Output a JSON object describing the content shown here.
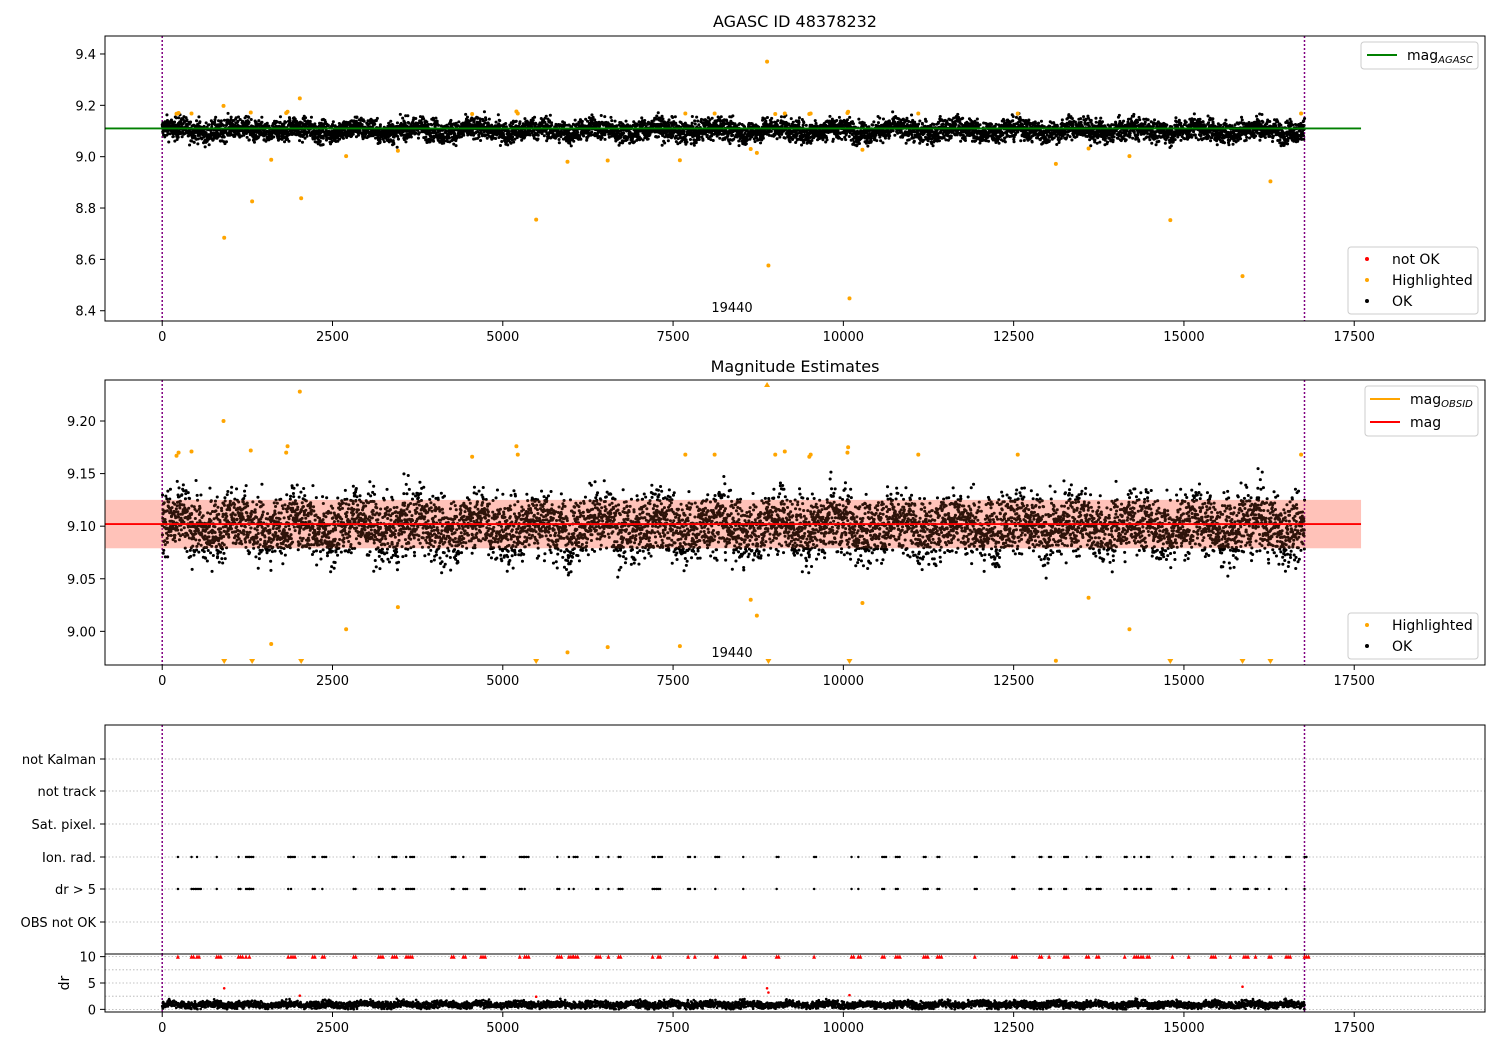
{
  "chart_data": [
    {
      "type": "scatter",
      "title": "AGASC ID 48378232",
      "xlim": [
        -840,
        19420
      ],
      "ylim": [
        8.36,
        9.47
      ],
      "xticks": [
        0,
        2500,
        5000,
        7500,
        10000,
        12500,
        15000,
        17500
      ],
      "yticks": [
        8.4,
        8.6,
        8.8,
        9.0,
        9.2,
        9.4
      ],
      "obsid_marker": {
        "x": 0,
        "label": "19440"
      },
      "vlines_x": [
        0,
        16770
      ],
      "mag_agasc_line": {
        "y": 9.11,
        "x_range": [
          -840,
          17600
        ]
      },
      "ok_series": {
        "name": "OK",
        "x_range": [
          0,
          16770
        ],
        "center": 9.103,
        "spread": 0.028
      },
      "highlighted": {
        "name": "Highlighted",
        "points": [
          [
            210,
            9.167
          ],
          [
            240,
            9.17
          ],
          [
            430,
            9.168
          ],
          [
            900,
            9.198
          ],
          [
            910,
            8.684
          ],
          [
            1300,
            9.172
          ],
          [
            1320,
            8.826
          ],
          [
            1600,
            8.988
          ],
          [
            1820,
            9.17
          ],
          [
            1840,
            9.175
          ],
          [
            2020,
            9.227
          ],
          [
            2040,
            8.838
          ],
          [
            2700,
            9.002
          ],
          [
            3460,
            9.023
          ],
          [
            4550,
            9.166
          ],
          [
            5200,
            9.176
          ],
          [
            5220,
            9.168
          ],
          [
            5490,
            8.755
          ],
          [
            5950,
            8.98
          ],
          [
            6540,
            8.985
          ],
          [
            7600,
            8.986
          ],
          [
            7680,
            9.168
          ],
          [
            8110,
            9.168
          ],
          [
            8640,
            9.03
          ],
          [
            8730,
            9.015
          ],
          [
            8880,
            9.37
          ],
          [
            8900,
            8.576
          ],
          [
            9000,
            9.166
          ],
          [
            9140,
            9.168
          ],
          [
            9500,
            9.166
          ],
          [
            9520,
            9.168
          ],
          [
            10060,
            9.17
          ],
          [
            10070,
            9.175
          ],
          [
            10090,
            8.448
          ],
          [
            10280,
            9.027
          ],
          [
            11100,
            9.168
          ],
          [
            12560,
            9.168
          ],
          [
            13120,
            8.972
          ],
          [
            13600,
            9.032
          ],
          [
            14200,
            9.002
          ],
          [
            14800,
            8.753
          ],
          [
            15860,
            8.535
          ],
          [
            16270,
            8.904
          ],
          [
            16720,
            9.168
          ]
        ]
      },
      "legend_lines": [
        {
          "name": "mag",
          "sub": "AGASC",
          "color": "#008000"
        }
      ],
      "legend_points": [
        {
          "name": "not OK",
          "color": "#ff0000"
        },
        {
          "name": "Highlighted",
          "color": "#ffa500"
        },
        {
          "name": "OK",
          "color": "#000000"
        }
      ]
    },
    {
      "type": "scatter",
      "title": "Magnitude Estimates",
      "xlim": [
        -840,
        19420
      ],
      "ylim": [
        8.968,
        9.239
      ],
      "xticks": [
        0,
        2500,
        5000,
        7500,
        10000,
        12500,
        15000,
        17500
      ],
      "yticks": [
        9.0,
        9.05,
        9.1,
        9.15,
        9.2
      ],
      "obsid_marker": {
        "x": 0,
        "label": "19440"
      },
      "vlines_x": [
        0,
        16770
      ],
      "mag_line": {
        "y": 9.102,
        "band": [
          9.079,
          9.125
        ],
        "x_range": [
          -840,
          17600
        ]
      },
      "ok_series": {
        "name": "OK",
        "x_range": [
          0,
          16770
        ],
        "center": 9.1,
        "spread": 0.02
      },
      "highlighted": {
        "name": "Highlighted",
        "points": [
          [
            210,
            9.167
          ],
          [
            240,
            9.17
          ],
          [
            430,
            9.171
          ],
          [
            900,
            9.2
          ],
          [
            1300,
            9.172
          ],
          [
            1600,
            8.988
          ],
          [
            1820,
            9.17
          ],
          [
            1840,
            9.176
          ],
          [
            2020,
            9.228
          ],
          [
            2700,
            9.002
          ],
          [
            3460,
            9.023
          ],
          [
            4550,
            9.166
          ],
          [
            5200,
            9.176
          ],
          [
            5220,
            9.168
          ],
          [
            5950,
            8.98
          ],
          [
            6540,
            8.985
          ],
          [
            7600,
            8.986
          ],
          [
            7680,
            9.168
          ],
          [
            8110,
            9.168
          ],
          [
            8640,
            9.03
          ],
          [
            8730,
            9.015
          ],
          [
            9000,
            9.168
          ],
          [
            9140,
            9.171
          ],
          [
            9500,
            9.166
          ],
          [
            9520,
            9.168
          ],
          [
            10060,
            9.17
          ],
          [
            10070,
            9.175
          ],
          [
            10280,
            9.027
          ],
          [
            11100,
            9.168
          ],
          [
            12560,
            9.168
          ],
          [
            13120,
            8.972
          ],
          [
            13600,
            9.032
          ],
          [
            14200,
            9.002
          ],
          [
            16720,
            9.168
          ]
        ]
      },
      "clipped_low_x": [
        910,
        1320,
        2040,
        5490,
        8900,
        10090,
        14800,
        15860,
        16270
      ],
      "clipped_high_x": [
        8880
      ],
      "legend_lines": [
        {
          "name": "mag",
          "sub": "OBSID",
          "color": "#ffa500"
        },
        {
          "name": "mag",
          "sub": "",
          "color": "#ff0000"
        }
      ],
      "legend_points": [
        {
          "name": "Highlighted",
          "color": "#ffa500"
        },
        {
          "name": "OK",
          "color": "#000000"
        }
      ]
    },
    {
      "type": "scatter",
      "title": "",
      "xlim": [
        -840,
        19420
      ],
      "categories": [
        "not Kalman",
        "not track",
        "Sat. pixel.",
        "Ion. rad.",
        "dr > 5",
        "OBS not OK"
      ],
      "vlines_x": [
        0,
        16770
      ],
      "flag_clusters": [
        230,
        430,
        510,
        800,
        1120,
        1230,
        1280,
        1850,
        1890,
        2210,
        2350,
        2810,
        3180,
        3380,
        3580,
        3640,
        4250,
        4420,
        4680,
        5250,
        5320,
        5800,
        5970,
        6040,
        6370,
        6550,
        6700,
        7200,
        7280,
        7720,
        7820,
        8120,
        8530,
        9020,
        9570,
        10120,
        10220,
        10570,
        10770,
        11180,
        11380,
        11930,
        12480,
        12880,
        13020,
        13240,
        13570,
        13720,
        14130,
        14270,
        14370,
        14460,
        14830,
        15070,
        15400,
        15680,
        15880,
        16050,
        16250,
        16500,
        16770
      ]
    },
    {
      "type": "scatter",
      "ylabel": "dr",
      "xlim": [
        -840,
        19420
      ],
      "ylim": [
        -0.5,
        10.5
      ],
      "yticks": [
        0,
        5,
        10
      ],
      "xticks": [
        0,
        2500,
        5000,
        7500,
        10000,
        12500,
        15000,
        17500
      ],
      "vlines_x": [
        0,
        16770
      ],
      "outliers": [
        [
          910,
          4.0
        ],
        [
          2020,
          2.6
        ],
        [
          8880,
          4.0
        ],
        [
          8900,
          3.2
        ],
        [
          10090,
          2.7
        ],
        [
          15860,
          4.3
        ],
        [
          5490,
          2.4
        ]
      ]
    }
  ],
  "colors": {
    "ok": "#000000",
    "highlighted": "#ffa500",
    "not_ok": "#ff0000",
    "agasc": "#008000",
    "mag": "#ff0000",
    "band": "#ffcccc",
    "vline": "#800080",
    "grid": "#b0b0b0"
  }
}
